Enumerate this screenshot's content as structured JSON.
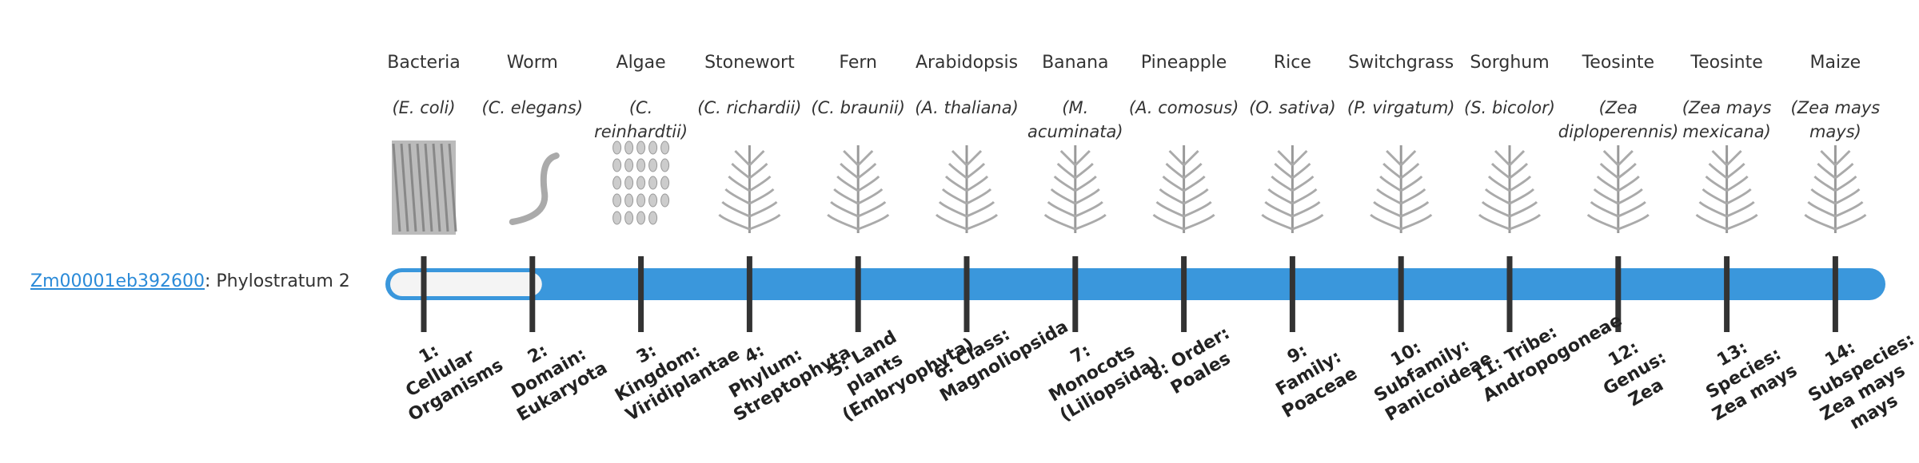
{
  "gene_link": "Zm00001eb392600",
  "gene_suffix": ": Phylostratum 2",
  "columns": [
    {
      "name": "Bacteria",
      "species": "(E. coli)",
      "stratum": "1: Cellular Organisms"
    },
    {
      "name": "Worm",
      "species": "(C. elegans)",
      "stratum": "2: Domain: Eukaryota"
    },
    {
      "name": "Algae",
      "species": "(C. reinhardtii)",
      "stratum": "3: Kingdom: Viridiplantae"
    },
    {
      "name": "Stonewort",
      "species": "(C. richardii)",
      "stratum": "4: Phylum: Streptophyta"
    },
    {
      "name": "Fern",
      "species": "(C. braunii)",
      "stratum": "5: Land plants (Embryophyta)"
    },
    {
      "name": "Arabidopsis",
      "species": "(A. thaliana)",
      "stratum": "6: Class: Magnoliopsida"
    },
    {
      "name": "Banana",
      "species": "(M. acuminata)",
      "stratum": "7: Monocots (Liliopsida)"
    },
    {
      "name": "Pineapple",
      "species": "(A. comosus)",
      "stratum": "8: Order: Poales"
    },
    {
      "name": "Rice",
      "species": "(O. sativa)",
      "stratum": "9: Family: Poaceae"
    },
    {
      "name": "Switchgrass",
      "species": "(P. virgatum)",
      "stratum": "10: Subfamily: Panicoideae"
    },
    {
      "name": "Sorghum",
      "species": "(S. bicolor)",
      "stratum": "11: Tribe: Andropogoneae"
    },
    {
      "name": "Teosinte",
      "species": "(Zea diploperennis)",
      "stratum": "12: Genus: Zea"
    },
    {
      "name": "Teosinte",
      "species": "(Zea mays mexicana)",
      "stratum": "13: Species: Zea mays"
    },
    {
      "name": "Maize",
      "species": "(Zea mays mays)",
      "stratum": "14: Subspecies: Zea mays mays"
    }
  ]
}
